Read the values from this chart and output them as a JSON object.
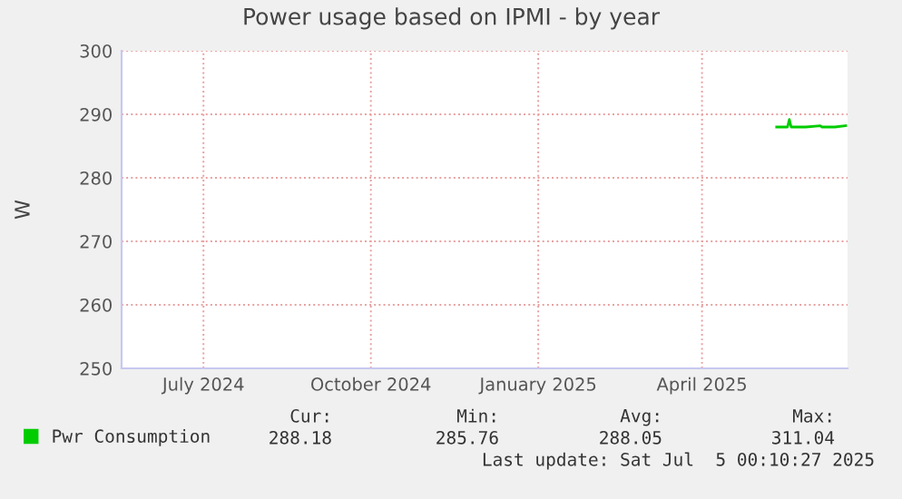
{
  "chart_data": {
    "type": "line",
    "title": "Power usage based on IPMI - by year",
    "ylabel": "W",
    "xlim": [
      "2024-06-01",
      "2025-07-05"
    ],
    "xticks": [
      {
        "value": "2024-07-16",
        "label": "July 2024"
      },
      {
        "value": "2024-10-16",
        "label": "October 2024"
      },
      {
        "value": "2025-01-16",
        "label": "January 2025"
      },
      {
        "value": "2025-04-16",
        "label": "April 2025"
      }
    ],
    "ylim": [
      250,
      300
    ],
    "yticks": [
      250,
      260,
      270,
      280,
      290,
      300
    ],
    "grid": true,
    "legend": "bottom",
    "series": [
      {
        "name": "Pwr Consumption",
        "color": "#00cc00",
        "x": [
          "2025-05-27",
          "2025-06-02",
          "2025-06-03",
          "2025-06-04",
          "2025-06-12",
          "2025-06-20",
          "2025-06-21",
          "2025-06-28",
          "2025-07-04"
        ],
        "values": [
          288,
          288,
          289.2,
          288,
          288,
          288.2,
          288,
          288,
          288.2
        ]
      }
    ],
    "annotations": [
      "Cur:",
      "288.18",
      "Min:",
      "285.76",
      "Avg:",
      "288.05",
      "Max:",
      "311.04",
      "Last update: Sat Jul  5 00:10:27 2025"
    ]
  }
}
